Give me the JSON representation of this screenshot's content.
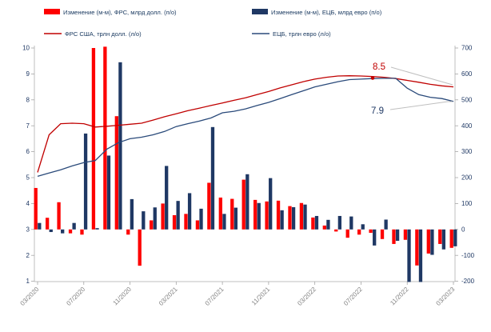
{
  "chart_data": {
    "type": "combo-bar-line",
    "title": "",
    "categories": [
      "03/2020",
      "04/2020",
      "05/2020",
      "06/2020",
      "07/2020",
      "08/2020",
      "09/2020",
      "10/2020",
      "11/2020",
      "12/2020",
      "01/2021",
      "02/2021",
      "03/2021",
      "04/2021",
      "05/2021",
      "06/2021",
      "07/2021",
      "08/2021",
      "09/2021",
      "10/2021",
      "11/2021",
      "12/2021",
      "01/2022",
      "02/2022",
      "03/2022",
      "04/2022",
      "05/2022",
      "06/2022",
      "07/2022",
      "08/2022",
      "09/2022",
      "10/2022",
      "11/2022",
      "12/2022",
      "01/2023",
      "02/2023",
      "03/2023"
    ],
    "x_tick_labels": [
      "03/2020",
      "07/2020",
      "11/2020",
      "03/2021",
      "07/2021",
      "11/2021",
      "03/2022",
      "07/2022",
      "11/2022",
      "03/2023"
    ],
    "x_tick_every": 4,
    "bar_series": [
      {
        "name": "Изменение (м-м), ФРС, млрд долл. (п/о)",
        "color": "#FE0000",
        "axis": "right",
        "values": [
          160,
          45,
          105,
          -15,
          -20,
          700,
          705,
          437,
          -20,
          -140,
          35,
          100,
          55,
          60,
          35,
          180,
          123,
          118,
          192,
          114,
          108,
          111,
          90,
          102,
          46,
          15,
          -8,
          -32,
          -20,
          -13,
          -37,
          -56,
          -40,
          -139,
          -93,
          -56,
          -71
        ]
      },
      {
        "name": "Изменение (м-м), ЕЦБ, млрд евро (п/о)",
        "color": "#1F3864",
        "axis": "right",
        "values": [
          25,
          -10,
          -15,
          25,
          370,
          5,
          285,
          645,
          117,
          70,
          85,
          245,
          110,
          140,
          80,
          395,
          60,
          84,
          213,
          102,
          198,
          74,
          86,
          96,
          52,
          37,
          52,
          50,
          20,
          -62,
          38,
          -44,
          -205,
          -205,
          -98,
          -77,
          -65
        ]
      }
    ],
    "line_series": [
      {
        "name": "ФРС США, трлн долл. (л/о)",
        "color": "#C00000",
        "axis": "left",
        "values": [
          5.2,
          6.65,
          7.08,
          7.1,
          7.08,
          6.95,
          6.98,
          7.02,
          7.06,
          7.1,
          7.22,
          7.35,
          7.46,
          7.58,
          7.68,
          7.78,
          7.88,
          7.98,
          8.08,
          8.2,
          8.32,
          8.46,
          8.58,
          8.7,
          8.8,
          8.87,
          8.92,
          8.93,
          8.92,
          8.9,
          8.87,
          8.82,
          8.75,
          8.68,
          8.6,
          8.54,
          8.5
        ]
      },
      {
        "name": "ЕЦБ, трлн евро (л/о)",
        "color": "#2A4A7A",
        "axis": "left",
        "values": [
          5.05,
          5.18,
          5.3,
          5.45,
          5.58,
          5.66,
          6.1,
          6.35,
          6.5,
          6.56,
          6.65,
          6.78,
          6.97,
          7.08,
          7.18,
          7.3,
          7.5,
          7.56,
          7.65,
          7.78,
          7.9,
          8.05,
          8.2,
          8.35,
          8.5,
          8.6,
          8.7,
          8.78,
          8.8,
          8.82,
          8.83,
          8.83,
          8.45,
          8.2,
          8.1,
          8.05,
          7.94
        ]
      }
    ],
    "left_axis": {
      "min": 1,
      "max": 10,
      "step": 1
    },
    "right_axis": {
      "min": -200,
      "max": 700,
      "step": 100
    },
    "annotations": [
      {
        "text": "8.5",
        "color": "#C00000",
        "series": "ФРС США, трлн долл. (л/о)"
      },
      {
        "text": "7.9",
        "color": "#1F3864",
        "series": "ЕЦБ, трлн евро (л/о)"
      }
    ],
    "legend_position": "top",
    "grid": false,
    "colors": {
      "axis_line": "#BFBFBF",
      "tick": "#A6A6A6",
      "x_label": "#7F7F7F",
      "y_label": "#1F3864",
      "leader_line": "#BFBFBF",
      "background": "#FFFFFF"
    }
  }
}
